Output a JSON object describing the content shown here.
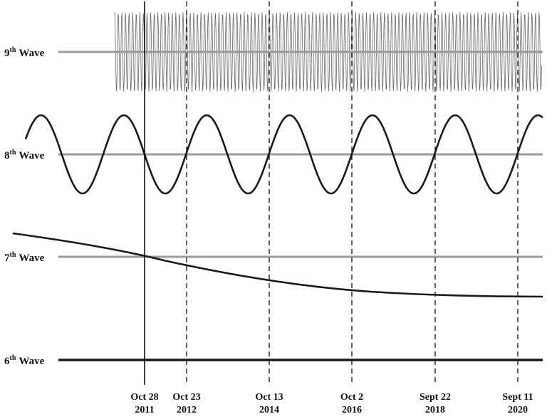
{
  "waves": [
    {
      "id": "9",
      "ordinal": "th",
      "name": "Wave"
    },
    {
      "id": "8",
      "ordinal": "th",
      "name": "Wave"
    },
    {
      "id": "7",
      "ordinal": "th",
      "name": "Wave"
    },
    {
      "id": "6",
      "ordinal": "th",
      "name": "Wave"
    }
  ],
  "dates": [
    {
      "line1": "Oct 28",
      "line2": "2011",
      "style": "solid"
    },
    {
      "line1": "Oct 23",
      "line2": "2012",
      "style": "dashed"
    },
    {
      "line1": "Oct 13",
      "line2": "2014",
      "style": "dashed"
    },
    {
      "line1": "Oct 2",
      "line2": "2016",
      "style": "dashed"
    },
    {
      "line1": "Sept 22",
      "line2": "2018",
      "style": "dashed"
    },
    {
      "line1": "Sept 11",
      "line2": "2020",
      "style": "dashed"
    }
  ],
  "colors": {
    "baseline": "#9a9a9a",
    "curve": "#1a1a1a",
    "ninth_wave": "#6a6a6a"
  }
}
